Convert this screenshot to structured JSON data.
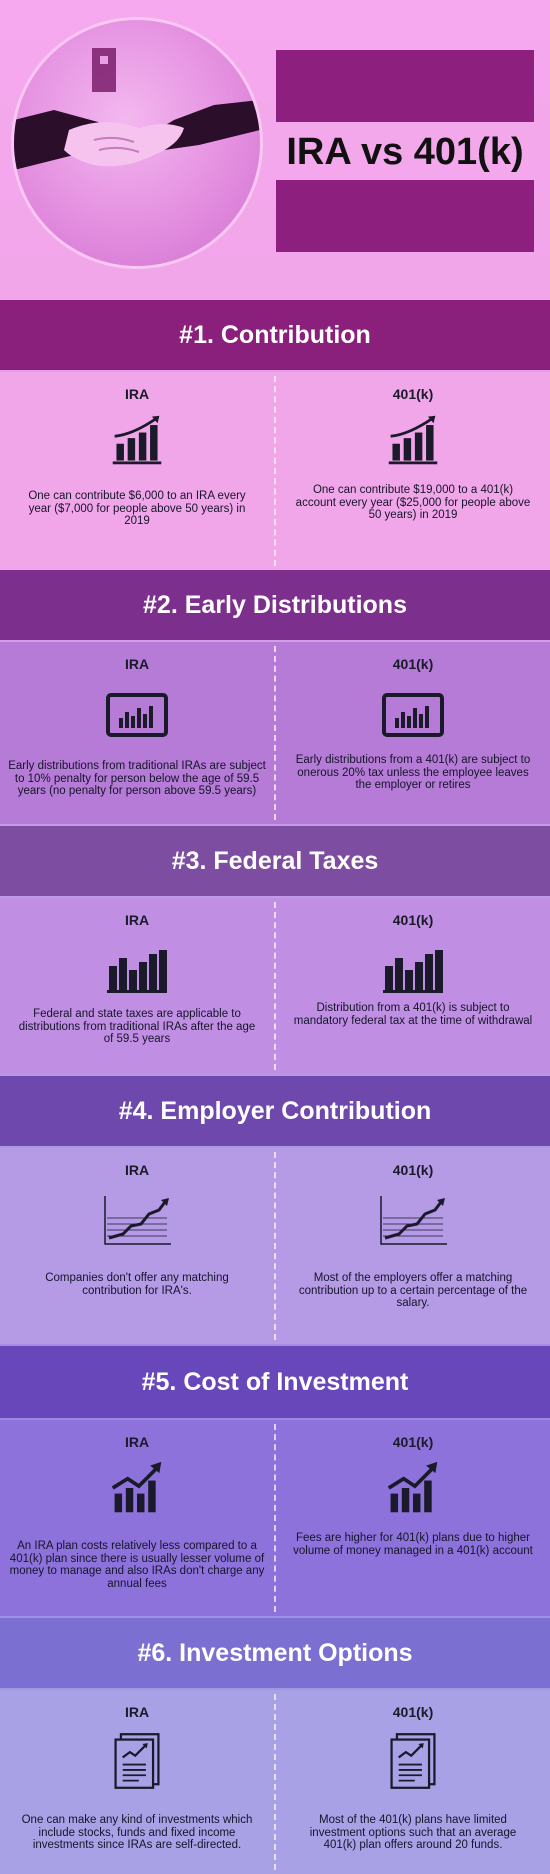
{
  "title": "IRA vs 401(k)",
  "column_labels": {
    "left": "IRA",
    "right": "401(k)"
  },
  "sections": [
    {
      "heading": "#1. Contribution",
      "icon": "bar-chart-growth-icon",
      "ira": "One can contribute $6,000 to an IRA every year ($7,000 for people above 50 years) in 2019",
      "k401": "One can contribute $19,000 to a 401(k) account every year ($25,000 for people above 50 years) in 2019"
    },
    {
      "heading": "#2. Early Distributions",
      "icon": "monitor-chart-icon",
      "ira": "Early distributions from traditional IRAs are subject to 10% penalty for person below the age of 59.5 years (no penalty for person above 59.5 years)",
      "k401": "Early distributions from a 401(k) are subject to onerous 20% tax unless the employee leaves the employer or retires"
    },
    {
      "heading": "#3. Federal Taxes",
      "icon": "bar-chart-icon",
      "ira": "Federal and state taxes are applicable to distributions from traditional IRAs after the age of 59.5 years",
      "k401": "Distribution from a 401(k) is subject to mandatory federal tax at the time of withdrawal"
    },
    {
      "heading": "#4. Employer Contribution",
      "icon": "line-graph-icon",
      "ira": "Companies don't offer any matching contribution for IRA's.",
      "k401": "Most of the employers offer a matching contribution up to a certain percentage of the salary."
    },
    {
      "heading": "#5. Cost of Investment",
      "icon": "growth-arrow-chart-icon",
      "ira": "An IRA plan costs relatively less compared to a 401(k) plan since there is usually lesser volume of money to manage and also IRAs don't charge any annual fees",
      "k401": "Fees are higher for 401(k) plans due to higher volume of money managed in a 401(k) account"
    },
    {
      "heading": "#6. Investment Options",
      "icon": "report-document-icon",
      "ira": "One can make any kind of investments which include stocks, funds and fixed income investments since IRAs are self-directed.",
      "k401": "Most of the 401(k) plans have limited investment options such that an average 401(k) plan offers around 20 funds."
    }
  ],
  "colors": {
    "header_1": "#8a1f7c",
    "header_2": "#7d2f8e",
    "header_3": "#7c4da0",
    "header_4": "#6e48ad",
    "header_5": "#6847ba",
    "header_6": "#6f63c8"
  }
}
